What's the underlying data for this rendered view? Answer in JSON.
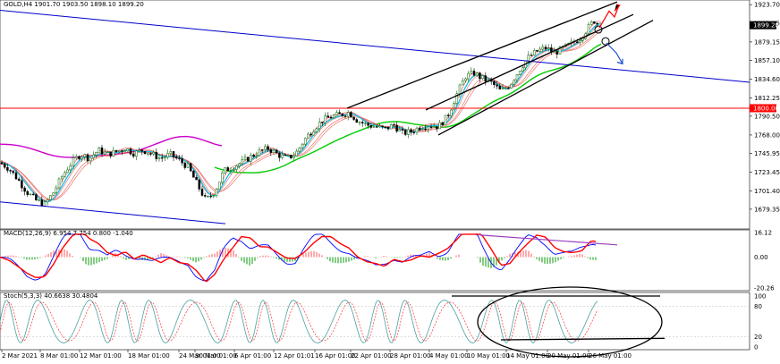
{
  "chart_data": [
    {
      "type": "candlestick",
      "panel": "price",
      "header": "GOLD,H4  1901.70 1903.50 1898.10 1899.20",
      "ylim": [
        1660,
        1925
      ],
      "y_ticks": [
        "1923.70",
        "1901.45",
        "1879.15",
        "1857.10",
        "1834.60",
        "1812.25",
        "1790.50",
        "1768.00",
        "1745.95",
        "1723.45",
        "1701.40",
        "1679.35"
      ],
      "current_price_label": "1899.20",
      "level_label": "1800.00",
      "level_value": 1800.0,
      "x_ticks": [
        "2 Mar 2021",
        "8 Mar 01:00",
        "12 Mar 01:00",
        "18 Mar 01:00",
        "24 Mar 01:00",
        "30 Mar 01:00",
        "6 Apr 01:00",
        "12 Apr 01:01",
        "16 Apr 01:00",
        "22 Apr 01:00",
        "28 Apr 01:00",
        "4 May 01:00",
        "10 May 01:00",
        "14 May 01:00",
        "20 May 01:00",
        "26 May 01:00"
      ],
      "close_path": [
        [
          0,
          1735
        ],
        [
          10,
          1728
        ],
        [
          20,
          1715
        ],
        [
          30,
          1700
        ],
        [
          40,
          1690
        ],
        [
          50,
          1685
        ],
        [
          60,
          1700
        ],
        [
          70,
          1720
        ],
        [
          80,
          1735
        ],
        [
          90,
          1745
        ],
        [
          100,
          1740
        ],
        [
          110,
          1750
        ],
        [
          120,
          1745
        ],
        [
          130,
          1748
        ],
        [
          140,
          1752
        ],
        [
          150,
          1746
        ],
        [
          160,
          1750
        ],
        [
          170,
          1745
        ],
        [
          180,
          1740
        ],
        [
          190,
          1745
        ],
        [
          200,
          1738
        ],
        [
          210,
          1730
        ],
        [
          220,
          1710
        ],
        [
          230,
          1690
        ],
        [
          240,
          1700
        ],
        [
          250,
          1725
        ],
        [
          260,
          1730
        ],
        [
          270,
          1735
        ],
        [
          280,
          1742
        ],
        [
          290,
          1748
        ],
        [
          300,
          1752
        ],
        [
          310,
          1745
        ],
        [
          320,
          1740
        ],
        [
          330,
          1745
        ],
        [
          340,
          1762
        ],
        [
          350,
          1775
        ],
        [
          360,
          1785
        ],
        [
          370,
          1790
        ],
        [
          380,
          1792
        ],
        [
          390,
          1795
        ],
        [
          400,
          1785
        ],
        [
          410,
          1780
        ],
        [
          420,
          1778
        ],
        [
          430,
          1775
        ],
        [
          440,
          1780
        ],
        [
          450,
          1770
        ],
        [
          460,
          1772
        ],
        [
          470,
          1778
        ],
        [
          480,
          1780
        ],
        [
          490,
          1778
        ],
        [
          500,
          1790
        ],
        [
          510,
          1815
        ],
        [
          520,
          1838
        ],
        [
          530,
          1842
        ],
        [
          540,
          1835
        ],
        [
          550,
          1830
        ],
        [
          560,
          1820
        ],
        [
          570,
          1828
        ],
        [
          580,
          1845
        ],
        [
          590,
          1860
        ],
        [
          600,
          1868
        ],
        [
          610,
          1872
        ],
        [
          620,
          1866
        ],
        [
          630,
          1872
        ],
        [
          640,
          1878
        ],
        [
          650,
          1885
        ],
        [
          660,
          1900
        ],
        [
          665,
          1905
        ],
        [
          670,
          1899
        ]
      ],
      "indicators": {
        "ema_fast_color": "#00cfff",
        "ma_slow_color": "#00cc00",
        "ma_long_color": "#cc00cc",
        "ribbon_color": "#e6524a",
        "channel_color": "#000000",
        "trendline_color": "#0000cc",
        "level_color": "#ff0000",
        "bull_candle": "#006600",
        "bear_candle": "#000000"
      }
    },
    {
      "type": "macd",
      "panel": "macd",
      "header": "MACD(12,26,9) 6.954 7.754 0.800 -1.040",
      "y_ticks": [
        "16.12",
        "0.00",
        "-20.26"
      ],
      "ylim": [
        -20.26,
        16.12
      ],
      "main_color": "#0000ff",
      "signal_color": "#ff0000",
      "hist_pos_color": "#ff7070",
      "hist_neg_color": "#33aa33"
    },
    {
      "type": "stochastic",
      "panel": "stoch",
      "header": "Stoch(5,3,3) 40.6638 30.4804",
      "y_ticks": [
        "100",
        "80",
        "20",
        "0"
      ],
      "ylim": [
        0,
        100
      ],
      "k_color": "#4aa0a0",
      "d_color": "#ff3333"
    }
  ]
}
